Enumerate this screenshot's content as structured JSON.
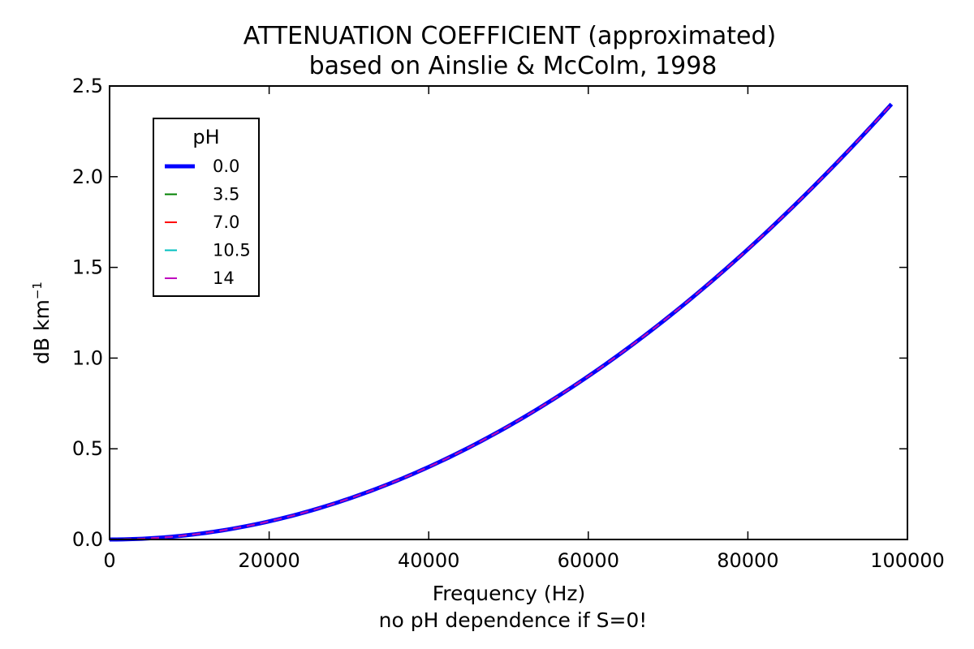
{
  "chart_data": {
    "type": "line",
    "title": "ATTENUATION COEFFICIENT (approximated)",
    "subtitle": "based on Ainslie & McColm, 1998",
    "xlabel": "Frequency (Hz)",
    "xlabel_note": "no pH dependence if S=0!",
    "ylabel": "dB km",
    "ylabel_superscript": "−1",
    "xlim": [
      0,
      100000
    ],
    "ylim": [
      0,
      2.5
    ],
    "xticks": [
      "0",
      "20000",
      "40000",
      "60000",
      "80000",
      "100000"
    ],
    "yticks": [
      "0.0",
      "0.5",
      "1.0",
      "1.5",
      "2.0",
      "2.5"
    ],
    "grid": false,
    "legend": {
      "title": "pH",
      "placement": "upper-left"
    },
    "x": [
      0,
      10000,
      20000,
      30000,
      40000,
      50000,
      60000,
      70000,
      80000,
      90000,
      98000
    ],
    "series": [
      {
        "name": "0.0",
        "color": "#0000ff",
        "style": "solid",
        "values": [
          0,
          0.025,
          0.1,
          0.225,
          0.4,
          0.625,
          0.9,
          1.225,
          1.6,
          2.025,
          2.4
        ]
      },
      {
        "name": "3.5",
        "color": "#008000",
        "style": "dashed",
        "values": [
          0,
          0.025,
          0.1,
          0.225,
          0.4,
          0.625,
          0.9,
          1.225,
          1.6,
          2.025,
          2.4
        ]
      },
      {
        "name": "7.0",
        "color": "#ff0000",
        "style": "dashed",
        "values": [
          0,
          0.025,
          0.1,
          0.225,
          0.4,
          0.625,
          0.9,
          1.225,
          1.6,
          2.025,
          2.4
        ]
      },
      {
        "name": "10.5",
        "color": "#00bfbf",
        "style": "dashed",
        "values": [
          0,
          0.025,
          0.1,
          0.225,
          0.4,
          0.625,
          0.9,
          1.225,
          1.6,
          2.025,
          2.4
        ]
      },
      {
        "name": "14",
        "color": "#bf00bf",
        "style": "dashed",
        "values": [
          0,
          0.025,
          0.1,
          0.225,
          0.4,
          0.625,
          0.9,
          1.225,
          1.6,
          2.025,
          2.4
        ]
      }
    ]
  }
}
